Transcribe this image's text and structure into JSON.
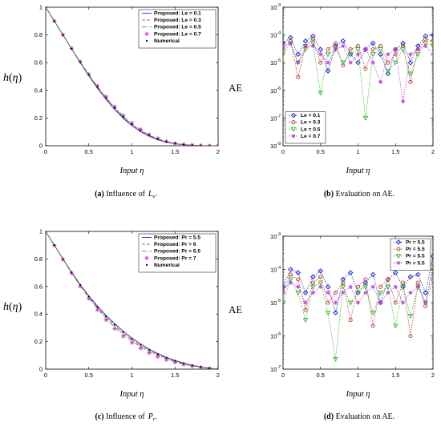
{
  "chart_data": [
    {
      "id": "a",
      "type": "line",
      "caption": {
        "label": "(a)",
        "text": "Influence of",
        "symbol": "L",
        "symbol_sub": "e",
        "suffix": "."
      },
      "xlabel": "Input η",
      "ylabel": "h(η)",
      "xlim": [
        0,
        2
      ],
      "ylim": [
        0,
        1
      ],
      "xticks": [
        "0",
        "0.5",
        "1",
        "1.5",
        "2"
      ],
      "yticks": [
        "0",
        "0.2",
        "0.4",
        "0.6",
        "0.8",
        "1"
      ],
      "legend_position": "top-right",
      "x": [
        0,
        0.1,
        0.2,
        0.3,
        0.4,
        0.5,
        0.6,
        0.7,
        0.8,
        0.9,
        1.0,
        1.1,
        1.2,
        1.3,
        1.4,
        1.5,
        1.6,
        1.7,
        1.8,
        1.9,
        2.0
      ],
      "series": [
        {
          "name": "Proposed:  Le = 0.1",
          "color": "#1f2bd6",
          "style": "solid",
          "marker": "none",
          "values": [
            1,
            0.9,
            0.8,
            0.7,
            0.6,
            0.505,
            0.415,
            0.335,
            0.262,
            0.198,
            0.145,
            0.102,
            0.068,
            0.043,
            0.025,
            0.014,
            0.007,
            0.003,
            0.001,
            0.0005,
            0
          ]
        },
        {
          "name": "Proposed:  Le = 0.3",
          "color": "#e0401c",
          "style": "dash",
          "marker": "none",
          "values": [
            1,
            0.9,
            0.8,
            0.7,
            0.603,
            0.51,
            0.422,
            0.342,
            0.27,
            0.206,
            0.152,
            0.108,
            0.073,
            0.047,
            0.028,
            0.016,
            0.008,
            0.004,
            0.0015,
            0.0005,
            0
          ]
        },
        {
          "name": "Proposed:  Le = 0.5",
          "color": "#22aa22",
          "style": "dashdot",
          "marker": "none",
          "values": [
            1,
            0.9,
            0.8,
            0.702,
            0.606,
            0.514,
            0.428,
            0.349,
            0.277,
            0.213,
            0.158,
            0.113,
            0.077,
            0.05,
            0.03,
            0.017,
            0.009,
            0.004,
            0.0015,
            0.0005,
            0
          ]
        },
        {
          "name": "Proposed:  Le = 0.7",
          "color": "#d63bd6",
          "style": "none",
          "marker": "star",
          "values": [
            1,
            0.9,
            0.801,
            0.703,
            0.608,
            0.517,
            0.432,
            0.354,
            0.283,
            0.219,
            0.164,
            0.118,
            0.081,
            0.053,
            0.032,
            0.018,
            0.01,
            0.005,
            0.002,
            0.0005,
            0
          ]
        },
        {
          "name": "Numerical",
          "color": "#000000",
          "style": "none",
          "marker": "dot",
          "values": [
            1,
            0.9,
            0.8,
            0.701,
            0.604,
            0.512,
            0.425,
            0.345,
            0.273,
            0.209,
            0.155,
            0.11,
            0.075,
            0.048,
            0.029,
            0.016,
            0.008,
            0.004,
            0.0015,
            0.0005,
            0
          ]
        }
      ]
    },
    {
      "id": "b",
      "type": "line",
      "caption": {
        "label": "(b)",
        "text": "Evaluation on AE."
      },
      "xlabel": "Input η",
      "ylabel": "AE",
      "xlim": [
        0,
        2
      ],
      "ylim_log10": [
        -8,
        -3
      ],
      "xticks": [
        "0",
        "0.5",
        "1",
        "1.5",
        "2"
      ],
      "yticks_exp": [
        "-8",
        "-7",
        "-6",
        "-5",
        "-4",
        "-3"
      ],
      "scale_y": "log",
      "legend_position": "bottom-left",
      "x": [
        0,
        0.1,
        0.2,
        0.3,
        0.4,
        0.5,
        0.6,
        0.7,
        0.8,
        0.9,
        1.0,
        1.1,
        1.2,
        1.3,
        1.4,
        1.5,
        1.6,
        1.7,
        1.8,
        1.9,
        2.0
      ],
      "series": [
        {
          "name": "Le = 0.1",
          "color": "#1f2bd6",
          "marker": "diamond",
          "values": [
            5e-05,
            8e-05,
            2e-05,
            6e-05,
            9e-05,
            3e-05,
            5e-06,
            4e-05,
            6e-05,
            2e-05,
            1e-05,
            3e-05,
            5e-05,
            2e-05,
            4e-06,
            3e-05,
            5e-05,
            1e-05,
            4e-05,
            9e-05,
            0.0001
          ]
        },
        {
          "name": "Le = 0.3",
          "color": "#c0392b",
          "marker": "circle",
          "values": [
            3e-05,
            6e-05,
            3e-06,
            4e-05,
            7e-05,
            1e-05,
            3e-05,
            5e-05,
            8e-06,
            3e-05,
            4e-05,
            6e-06,
            3e-05,
            4e-05,
            1e-05,
            2e-05,
            4e-05,
            2e-06,
            3e-05,
            7e-05,
            6e-05
          ]
        },
        {
          "name": "Le = 0.5",
          "color": "#33bb33",
          "marker": "triangle",
          "values": [
            2e-05,
            5e-05,
            1e-05,
            3e-05,
            5e-05,
            8e-07,
            2e-05,
            3e-05,
            1e-05,
            2e-05,
            3e-05,
            1e-07,
            2e-05,
            3e-05,
            5e-06,
            1e-05,
            3e-05,
            4e-06,
            2e-05,
            5e-05,
            4e-05
          ]
        },
        {
          "name": "Le = 0.7",
          "color": "#c03bd6",
          "marker": "star",
          "values": [
            4e-05,
            5e-05,
            1e-05,
            4e-05,
            4e-05,
            2e-05,
            1e-05,
            3e-05,
            4e-05,
            1e-05,
            2e-05,
            3e-05,
            1e-05,
            2e-06,
            2e-05,
            3e-05,
            4e-07,
            2e-05,
            3e-05,
            4e-05,
            2e-05
          ]
        }
      ]
    },
    {
      "id": "c",
      "type": "line",
      "caption": {
        "label": "(c)",
        "text": "Influence of",
        "symbol": "P",
        "symbol_sub": "r",
        "suffix": "."
      },
      "xlabel": "Input η",
      "ylabel": "h(η)",
      "xlim": [
        0,
        2
      ],
      "ylim": [
        0,
        1
      ],
      "xticks": [
        "0",
        "0.5",
        "1",
        "1.5",
        "2"
      ],
      "yticks": [
        "0",
        "0.2",
        "0.4",
        "0.6",
        "0.8",
        "1"
      ],
      "legend_position": "top-right",
      "x": [
        0,
        0.1,
        0.2,
        0.3,
        0.4,
        0.5,
        0.6,
        0.7,
        0.8,
        0.9,
        1.0,
        1.1,
        1.2,
        1.3,
        1.4,
        1.5,
        1.6,
        1.7,
        1.8,
        1.9,
        2.0
      ],
      "series": [
        {
          "name": "Proposed:  Pr = 5.5",
          "color": "#1f2bd6",
          "style": "solid",
          "marker": "none",
          "values": [
            1,
            0.9,
            0.8,
            0.705,
            0.615,
            0.532,
            0.458,
            0.39,
            0.33,
            0.275,
            0.226,
            0.183,
            0.145,
            0.113,
            0.086,
            0.063,
            0.044,
            0.028,
            0.016,
            0.007,
            0
          ]
        },
        {
          "name": "Proposed:  Pr = 6",
          "color": "#e0401c",
          "style": "dash",
          "marker": "none",
          "values": [
            1,
            0.9,
            0.8,
            0.702,
            0.61,
            0.525,
            0.448,
            0.378,
            0.317,
            0.262,
            0.214,
            0.172,
            0.136,
            0.105,
            0.08,
            0.058,
            0.04,
            0.026,
            0.015,
            0.006,
            0
          ]
        },
        {
          "name": "Proposed:  Pr = 6.5",
          "color": "#22aa22",
          "style": "dashdot",
          "marker": "none",
          "values": [
            1,
            0.899,
            0.798,
            0.699,
            0.605,
            0.518,
            0.439,
            0.367,
            0.305,
            0.25,
            0.203,
            0.162,
            0.127,
            0.098,
            0.074,
            0.054,
            0.037,
            0.024,
            0.014,
            0.006,
            0
          ]
        },
        {
          "name": "Proposed:  Pr = 7",
          "color": "#d63bd6",
          "style": "none",
          "marker": "star",
          "values": [
            1,
            0.898,
            0.796,
            0.696,
            0.6,
            0.512,
            0.43,
            0.357,
            0.294,
            0.239,
            0.192,
            0.152,
            0.118,
            0.09,
            0.068,
            0.049,
            0.034,
            0.022,
            0.013,
            0.005,
            0
          ]
        },
        {
          "name": "Numerical",
          "color": "#000000",
          "style": "none",
          "marker": "dot",
          "values": [
            1,
            0.9,
            0.8,
            0.703,
            0.612,
            0.528,
            0.452,
            0.383,
            0.322,
            0.268,
            0.22,
            0.178,
            0.141,
            0.11,
            0.084,
            0.061,
            0.042,
            0.027,
            0.016,
            0.007,
            0
          ]
        }
      ]
    },
    {
      "id": "d",
      "type": "line",
      "caption": {
        "label": "(d)",
        "text": "Evaluation on AE."
      },
      "xlabel": "Input η",
      "ylabel": "AE",
      "xlim": [
        0,
        2
      ],
      "ylim_log10": [
        -7,
        -3
      ],
      "xticks": [
        "0",
        "0.5",
        "1",
        "1.5",
        "2"
      ],
      "yticks_exp": [
        "-7",
        "-6",
        "-5",
        "-4",
        "-3"
      ],
      "scale_y": "log",
      "legend_position": "top-right",
      "x": [
        0,
        0.1,
        0.2,
        0.3,
        0.4,
        0.5,
        0.6,
        0.7,
        0.8,
        0.9,
        1.0,
        1.1,
        1.2,
        1.3,
        1.4,
        1.5,
        1.6,
        1.7,
        1.8,
        1.9,
        2.0
      ],
      "series": [
        {
          "name": "Pr = 5.5",
          "color": "#1f2bd6",
          "marker": "diamond",
          "values": [
            3e-05,
            0.0001,
            8e-05,
            2e-05,
            6e-05,
            9e-05,
            3e-05,
            5e-06,
            5e-05,
            8e-05,
            2e-05,
            4e-05,
            7e-05,
            1e-05,
            5e-05,
            8e-05,
            3e-05,
            6e-05,
            7e-05,
            2e-05,
            0.00025
          ]
        },
        {
          "name": "Pr = 5.5",
          "color": "#c0392b",
          "marker": "circle",
          "values": [
            2e-05,
            7e-05,
            5e-05,
            6e-06,
            4e-05,
            6e-05,
            1e-05,
            2e-05,
            4e-05,
            3e-06,
            3e-05,
            5e-05,
            2e-06,
            3e-05,
            5e-05,
            1e-05,
            4e-05,
            1e-06,
            4e-05,
            8e-06,
            0.00015
          ]
        },
        {
          "name": "Pr = 5.5",
          "color": "#33bb33",
          "marker": "triangle",
          "values": [
            1e-05,
            5e-05,
            2e-05,
            3e-06,
            3e-05,
            4e-05,
            5e-06,
            2e-07,
            3e-05,
            1e-05,
            2e-05,
            3e-05,
            5e-06,
            2e-05,
            3e-05,
            2e-06,
            3e-05,
            4e-06,
            3e-05,
            1e-05,
            0.0001
          ]
        },
        {
          "name": "Pr = 5.5",
          "color": "#c03bd6",
          "marker": "star",
          "values": [
            2.5e-05,
            4e-05,
            3e-05,
            1e-05,
            2e-05,
            3e-05,
            2e-05,
            1e-05,
            2e-05,
            3e-05,
            1e-05,
            2e-05,
            3e-05,
            1e-05,
            2e-05,
            3e-05,
            1e-05,
            2e-05,
            3e-05,
            1e-05,
            5e-05
          ]
        }
      ]
    }
  ]
}
